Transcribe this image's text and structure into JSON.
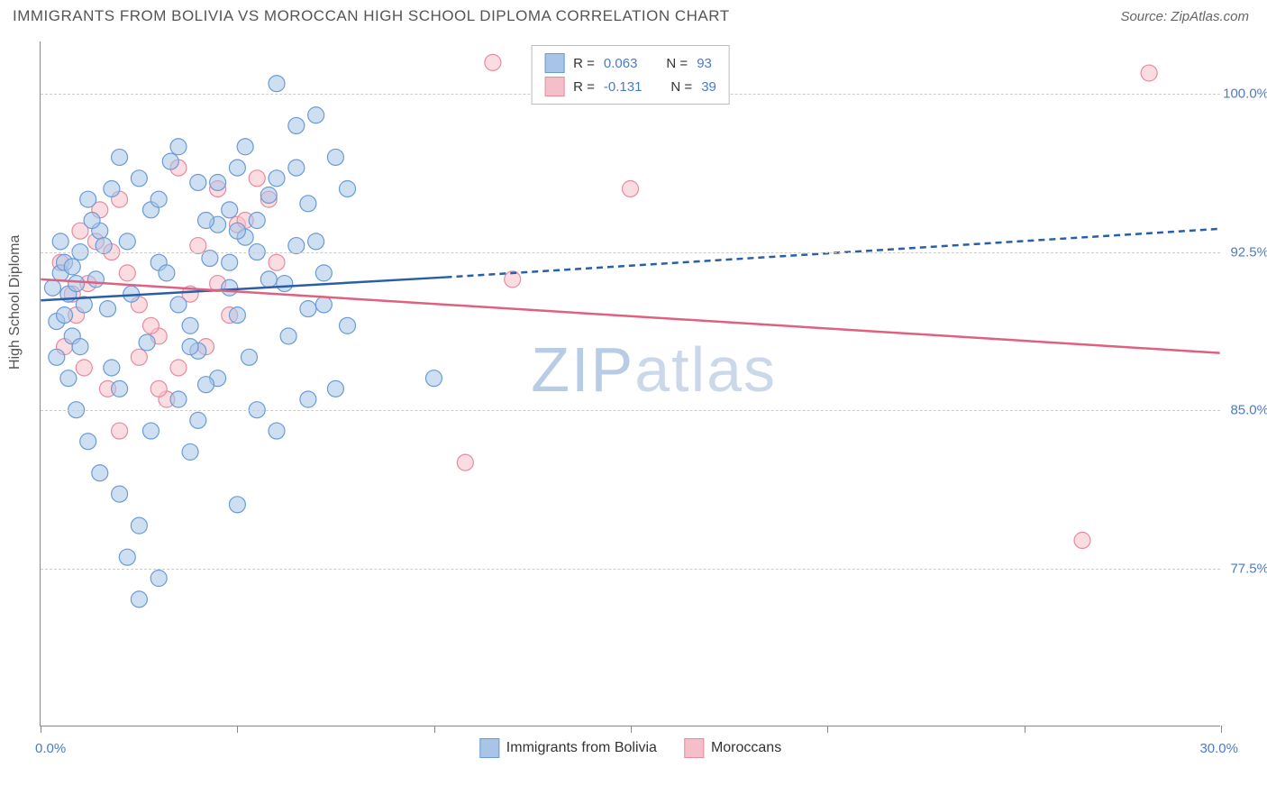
{
  "title": "IMMIGRANTS FROM BOLIVIA VS MOROCCAN HIGH SCHOOL DIPLOMA CORRELATION CHART",
  "source_label": "Source: ZipAtlas.com",
  "y_axis_label": "High School Diploma",
  "watermark": {
    "zip": "ZIP",
    "atlas": "atlas"
  },
  "chart": {
    "type": "scatter",
    "xlim": [
      0.0,
      30.0
    ],
    "ylim": [
      70.0,
      102.5
    ],
    "x_tick_left": "0.0%",
    "x_tick_right": "30.0%",
    "x_ticks_positions": [
      0,
      5,
      10,
      15,
      20,
      25,
      30
    ],
    "y_gridlines": [
      77.5,
      85.0,
      92.5,
      100.0
    ],
    "y_tick_labels": [
      "77.5%",
      "85.0%",
      "92.5%",
      "100.0%"
    ],
    "background_color": "#ffffff",
    "grid_color": "#cccccc",
    "axis_color": "#888888",
    "tick_label_color": "#4a7bc8",
    "marker_radius": 9,
    "marker_opacity": 0.55,
    "trend_line_width": 2.5
  },
  "series": [
    {
      "name": "Immigrants from Bolivia",
      "color_fill": "#a8c5e8",
      "color_stroke": "#6a9bd8",
      "R_label": "R =",
      "R_value": "0.063",
      "N_label": "N =",
      "N_value": "93",
      "trend": {
        "x1": 0.0,
        "y1": 90.2,
        "x_solid_end": 10.3,
        "y_solid_end": 91.3,
        "x2": 30.0,
        "y2": 93.6,
        "color": "#2a5fa8"
      },
      "points": [
        [
          0.3,
          90.8
        ],
        [
          0.5,
          91.5
        ],
        [
          0.4,
          89.2
        ],
        [
          0.6,
          92.0
        ],
        [
          0.7,
          90.5
        ],
        [
          0.8,
          88.5
        ],
        [
          0.5,
          93.0
        ],
        [
          0.9,
          91.0
        ],
        [
          0.4,
          87.5
        ],
        [
          1.0,
          92.5
        ],
        [
          1.2,
          95.0
        ],
        [
          0.6,
          89.5
        ],
        [
          1.5,
          93.5
        ],
        [
          0.8,
          91.8
        ],
        [
          1.1,
          90.0
        ],
        [
          1.3,
          94.0
        ],
        [
          0.7,
          86.5
        ],
        [
          1.6,
          92.8
        ],
        [
          1.0,
          88.0
        ],
        [
          1.8,
          95.5
        ],
        [
          2.0,
          97.0
        ],
        [
          1.4,
          91.2
        ],
        [
          2.2,
          93.0
        ],
        [
          0.9,
          85.0
        ],
        [
          2.5,
          96.0
        ],
        [
          1.7,
          89.8
        ],
        [
          2.8,
          94.5
        ],
        [
          3.0,
          92.0
        ],
        [
          1.2,
          83.5
        ],
        [
          3.5,
          97.5
        ],
        [
          2.3,
          90.5
        ],
        [
          4.0,
          95.8
        ],
        [
          2.7,
          88.2
        ],
        [
          4.5,
          93.8
        ],
        [
          3.2,
          91.5
        ],
        [
          5.0,
          96.5
        ],
        [
          2.0,
          86.0
        ],
        [
          3.8,
          89.0
        ],
        [
          4.2,
          94.0
        ],
        [
          1.5,
          82.0
        ],
        [
          5.5,
          92.5
        ],
        [
          3.0,
          95.0
        ],
        [
          2.5,
          79.5
        ],
        [
          4.8,
          90.8
        ],
        [
          1.8,
          87.0
        ],
        [
          6.0,
          100.5
        ],
        [
          2.2,
          78.0
        ],
        [
          5.2,
          93.2
        ],
        [
          3.5,
          85.5
        ],
        [
          6.5,
          98.5
        ],
        [
          4.0,
          87.8
        ],
        [
          5.8,
          95.2
        ],
        [
          2.8,
          84.0
        ],
        [
          6.2,
          91.0
        ],
        [
          3.3,
          96.8
        ],
        [
          7.0,
          99.0
        ],
        [
          4.5,
          86.5
        ],
        [
          5.0,
          89.5
        ],
        [
          6.8,
          94.8
        ],
        [
          3.8,
          83.0
        ],
        [
          7.5,
          97.0
        ],
        [
          4.3,
          92.2
        ],
        [
          5.5,
          85.0
        ],
        [
          6.0,
          96.0
        ],
        [
          7.2,
          90.0
        ],
        [
          4.8,
          94.5
        ],
        [
          5.3,
          87.5
        ],
        [
          2.0,
          81.0
        ],
        [
          6.5,
          92.8
        ],
        [
          7.8,
          95.5
        ],
        [
          5.0,
          80.5
        ],
        [
          3.0,
          77.0
        ],
        [
          6.3,
          88.5
        ],
        [
          7.0,
          93.0
        ],
        [
          4.0,
          84.5
        ],
        [
          5.8,
          91.2
        ],
        [
          2.5,
          76.0
        ],
        [
          6.8,
          89.8
        ],
        [
          4.5,
          95.8
        ],
        [
          7.5,
          86.0
        ],
        [
          5.2,
          97.5
        ],
        [
          3.5,
          90.0
        ],
        [
          6.0,
          84.0
        ],
        [
          4.8,
          92.0
        ],
        [
          5.5,
          94.0
        ],
        [
          7.2,
          91.5
        ],
        [
          3.8,
          88.0
        ],
        [
          6.5,
          96.5
        ],
        [
          7.8,
          89.0
        ],
        [
          4.2,
          86.2
        ],
        [
          10.0,
          86.5
        ],
        [
          5.0,
          93.5
        ],
        [
          6.8,
          85.5
        ]
      ]
    },
    {
      "name": "Moroccans",
      "color_fill": "#f5bfc9",
      "color_stroke": "#e88aa0",
      "R_label": "R =",
      "R_value": "-0.131",
      "N_label": "N =",
      "N_value": "39",
      "trend": {
        "x1": 0.0,
        "y1": 91.2,
        "x_solid_end": 30.0,
        "y_solid_end": 87.7,
        "x2": 30.0,
        "y2": 87.7,
        "color": "#e06080"
      },
      "points": [
        [
          0.5,
          92.0
        ],
        [
          0.8,
          90.5
        ],
        [
          1.0,
          93.5
        ],
        [
          0.6,
          88.0
        ],
        [
          1.2,
          91.0
        ],
        [
          1.5,
          94.5
        ],
        [
          0.9,
          89.5
        ],
        [
          1.8,
          92.5
        ],
        [
          1.1,
          87.0
        ],
        [
          2.0,
          95.0
        ],
        [
          2.5,
          90.0
        ],
        [
          1.4,
          93.0
        ],
        [
          3.0,
          88.5
        ],
        [
          2.2,
          91.5
        ],
        [
          3.5,
          96.5
        ],
        [
          1.7,
          86.0
        ],
        [
          4.0,
          92.8
        ],
        [
          2.8,
          89.0
        ],
        [
          4.5,
          95.5
        ],
        [
          3.2,
          85.5
        ],
        [
          5.0,
          93.8
        ],
        [
          2.5,
          87.5
        ],
        [
          5.5,
          96.0
        ],
        [
          3.8,
          90.5
        ],
        [
          6.0,
          92.0
        ],
        [
          4.2,
          88.0
        ],
        [
          3.0,
          86.0
        ],
        [
          5.2,
          94.0
        ],
        [
          4.8,
          89.5
        ],
        [
          11.5,
          101.5
        ],
        [
          2.0,
          84.0
        ],
        [
          4.5,
          91.0
        ],
        [
          5.8,
          95.0
        ],
        [
          3.5,
          87.0
        ],
        [
          12.0,
          91.2
        ],
        [
          10.8,
          82.5
        ],
        [
          15.0,
          95.5
        ],
        [
          26.5,
          78.8
        ],
        [
          28.2,
          101.0
        ]
      ]
    }
  ],
  "legend_bottom": {
    "series_a": "Immigrants from Bolivia",
    "series_b": "Moroccans"
  }
}
